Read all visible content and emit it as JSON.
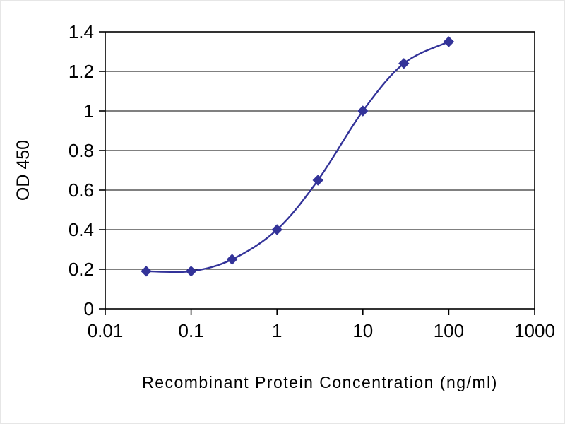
{
  "chart_data": {
    "type": "line",
    "title": "",
    "xlabel": "Recombinant Protein Concentration  (ng/ml)",
    "ylabel": "OD 450",
    "x_scale": "log",
    "xlim": [
      0.01,
      1000
    ],
    "ylim": [
      0,
      1.4
    ],
    "x_ticks": [
      0.01,
      0.1,
      1,
      10,
      100,
      1000
    ],
    "x_tick_labels": [
      "0.01",
      "0.1",
      "1",
      "10",
      "100",
      "1000"
    ],
    "y_ticks": [
      0,
      0.2,
      0.4,
      0.6,
      0.8,
      1,
      1.2,
      1.4
    ],
    "y_tick_labels": [
      "0",
      "0.2",
      "0.4",
      "0.6",
      "0.8",
      "1",
      "1.2",
      "1.4"
    ],
    "grid": "horizontal",
    "legend": "none",
    "series": [
      {
        "x": [
          0.03,
          0.1,
          0.3,
          1,
          3,
          10,
          30,
          100
        ],
        "y": [
          0.19,
          0.19,
          0.25,
          0.4,
          0.65,
          1.0,
          1.24,
          1.35
        ],
        "color": "#333399",
        "marker": "diamond"
      }
    ]
  }
}
